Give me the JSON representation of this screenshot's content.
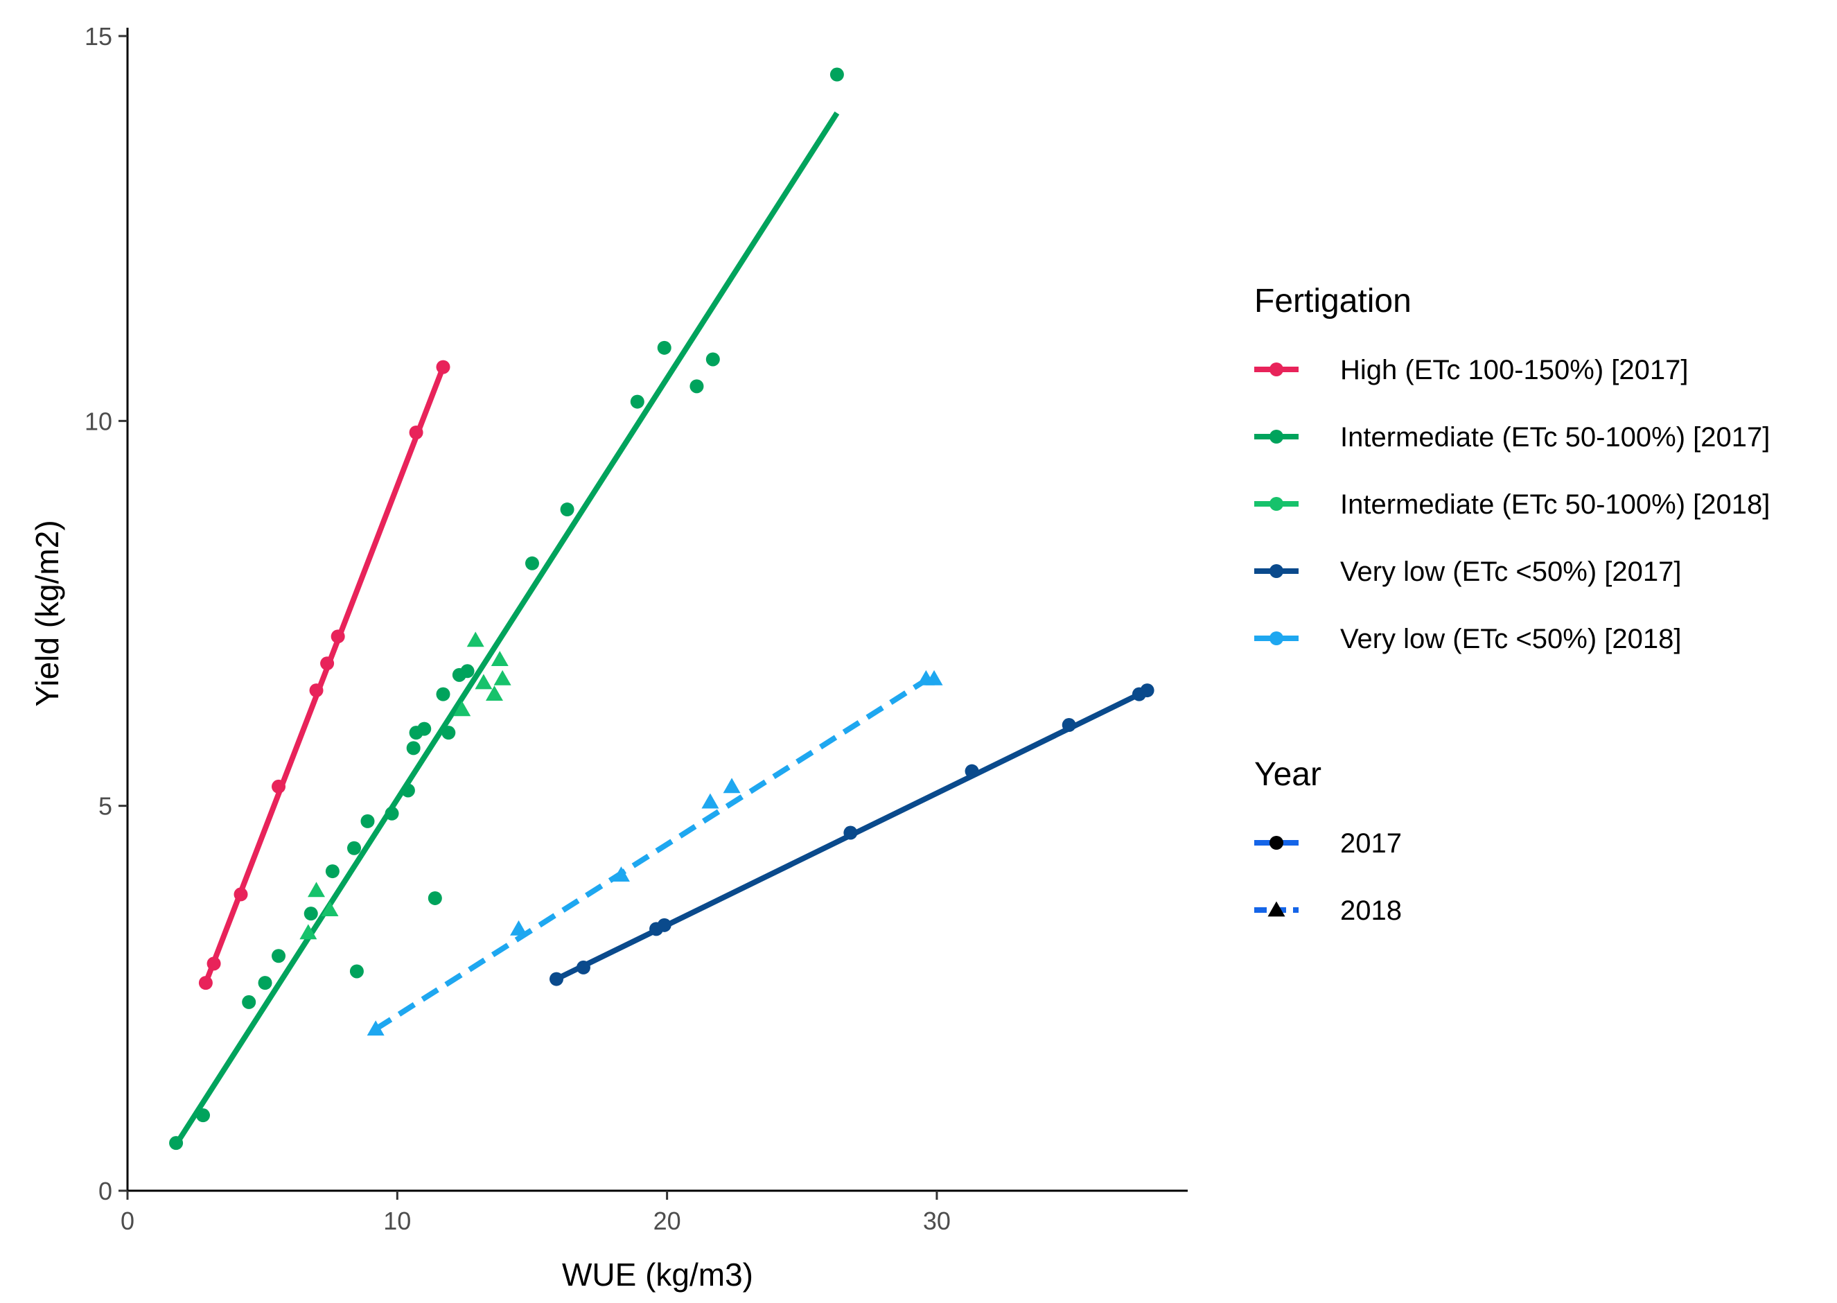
{
  "chart_data": {
    "type": "scatter",
    "title": "",
    "xlabel": "WUE (kg/m3)",
    "ylabel": "Yield (kg/m2)",
    "xlim": [
      0,
      39.3
    ],
    "ylim": [
      0,
      15
    ],
    "xticks": [
      0,
      10,
      20,
      30
    ],
    "yticks": [
      0,
      5,
      10,
      15
    ],
    "grid": false,
    "legend_position": "right",
    "series": [
      {
        "name": "High (ETc 100-150%) [2017]",
        "color": "#e8235a",
        "year": "2017",
        "marker": "circle",
        "line": [
          [
            2.9,
            2.7
          ],
          [
            11.7,
            10.7
          ]
        ],
        "points": [
          [
            2.9,
            2.7
          ],
          [
            3.2,
            2.95
          ],
          [
            4.2,
            3.85
          ],
          [
            5.6,
            5.25
          ],
          [
            7.0,
            6.5
          ],
          [
            7.4,
            6.85
          ],
          [
            7.8,
            7.2
          ],
          [
            10.7,
            9.85
          ],
          [
            11.7,
            10.7
          ]
        ]
      },
      {
        "name": "Intermediate (ETc 50-100%) [2017]",
        "color": "#00a35c",
        "year": "2017",
        "marker": "circle",
        "line": [
          [
            1.8,
            0.6
          ],
          [
            26.3,
            14.0
          ]
        ],
        "points": [
          [
            1.8,
            0.62
          ],
          [
            2.8,
            0.98
          ],
          [
            4.5,
            2.45
          ],
          [
            5.1,
            2.7
          ],
          [
            5.6,
            3.05
          ],
          [
            6.8,
            3.6
          ],
          [
            7.6,
            4.15
          ],
          [
            8.4,
            4.45
          ],
          [
            8.5,
            2.85
          ],
          [
            8.9,
            4.8
          ],
          [
            9.8,
            4.9
          ],
          [
            10.4,
            5.2
          ],
          [
            10.6,
            5.75
          ],
          [
            10.7,
            5.95
          ],
          [
            11.0,
            6.0
          ],
          [
            11.4,
            3.8
          ],
          [
            11.7,
            6.45
          ],
          [
            11.9,
            5.95
          ],
          [
            12.3,
            6.7
          ],
          [
            12.6,
            6.75
          ],
          [
            15.0,
            8.15
          ],
          [
            16.3,
            8.85
          ],
          [
            18.9,
            10.25
          ],
          [
            19.9,
            10.95
          ],
          [
            21.1,
            10.45
          ],
          [
            21.7,
            10.8
          ],
          [
            26.3,
            14.5
          ]
        ]
      },
      {
        "name": "Intermediate (ETc 50-100%) [2018]",
        "color": "#17c26b",
        "year": "2018",
        "marker": "triangle",
        "line": [],
        "points": [
          [
            6.7,
            3.35
          ],
          [
            7.0,
            3.9
          ],
          [
            7.5,
            3.65
          ],
          [
            12.4,
            6.25
          ],
          [
            12.9,
            7.15
          ],
          [
            13.2,
            6.6
          ],
          [
            13.6,
            6.45
          ],
          [
            13.8,
            6.9
          ],
          [
            13.9,
            6.65
          ]
        ]
      },
      {
        "name": "Very low (ETc <50%) [2017]",
        "color": "#0a4a8c",
        "year": "2017",
        "marker": "circle",
        "line": [
          [
            15.9,
            2.75
          ],
          [
            37.8,
            6.5
          ]
        ],
        "points": [
          [
            15.9,
            2.75
          ],
          [
            16.9,
            2.9
          ],
          [
            19.6,
            3.4
          ],
          [
            19.9,
            3.45
          ],
          [
            26.8,
            4.65
          ],
          [
            31.3,
            5.45
          ],
          [
            34.9,
            6.05
          ],
          [
            37.5,
            6.45
          ],
          [
            37.8,
            6.5
          ]
        ]
      },
      {
        "name": "Very low (ETc <50%) [2018]",
        "color": "#1ea7f0",
        "year": "2018",
        "marker": "triangle",
        "line": [
          [
            9.2,
            2.1
          ],
          [
            29.9,
            6.7
          ]
        ],
        "points": [
          [
            9.2,
            2.1
          ],
          [
            14.5,
            3.4
          ],
          [
            18.3,
            4.1
          ],
          [
            21.6,
            5.05
          ],
          [
            22.4,
            5.25
          ],
          [
            29.6,
            6.65
          ],
          [
            29.9,
            6.65
          ]
        ]
      }
    ],
    "legend": {
      "fertigation_title": "Fertigation",
      "fertigation_items": [
        {
          "label": "High (ETc 100-150%) [2017]",
          "color": "#e8235a"
        },
        {
          "label": "Intermediate (ETc 50-100%) [2017]",
          "color": "#00a35c"
        },
        {
          "label": "Intermediate (ETc 50-100%) [2018]",
          "color": "#17c26b"
        },
        {
          "label": "Very low (ETc <50%) [2017]",
          "color": "#0a4a8c"
        },
        {
          "label": "Very low (ETc <50%) [2018]",
          "color": "#1ea7f0"
        }
      ],
      "year_title": "Year",
      "year_items": [
        {
          "label": "2017",
          "linetype": "solid",
          "marker": "circle",
          "color": "#1565e8"
        },
        {
          "label": "2018",
          "linetype": "dashed",
          "marker": "triangle",
          "color": "#1565e8"
        }
      ]
    }
  }
}
